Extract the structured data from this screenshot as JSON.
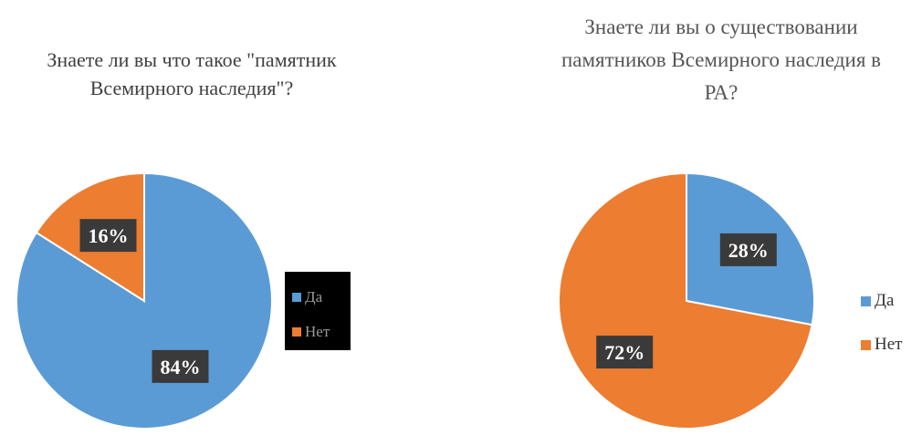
{
  "chart_data": [
    {
      "type": "pie",
      "title": "Знаете ли вы что такое \"памятник Всемирного наследия\"?",
      "categories": [
        "Да",
        "Нет"
      ],
      "values": [
        84,
        16
      ],
      "data_labels": [
        "84%",
        "16%"
      ],
      "colors": [
        "#5b9bd5",
        "#ed7d31"
      ],
      "legend_position": "right"
    },
    {
      "type": "pie",
      "title": "Знаете ли вы о существовании памятников Всемирного наследия в РА?",
      "categories": [
        "Да",
        "Нет"
      ],
      "values": [
        28,
        72
      ],
      "data_labels": [
        "28%",
        "72%"
      ],
      "colors": [
        "#5b9bd5",
        "#ed7d31"
      ],
      "legend_position": "right"
    }
  ]
}
